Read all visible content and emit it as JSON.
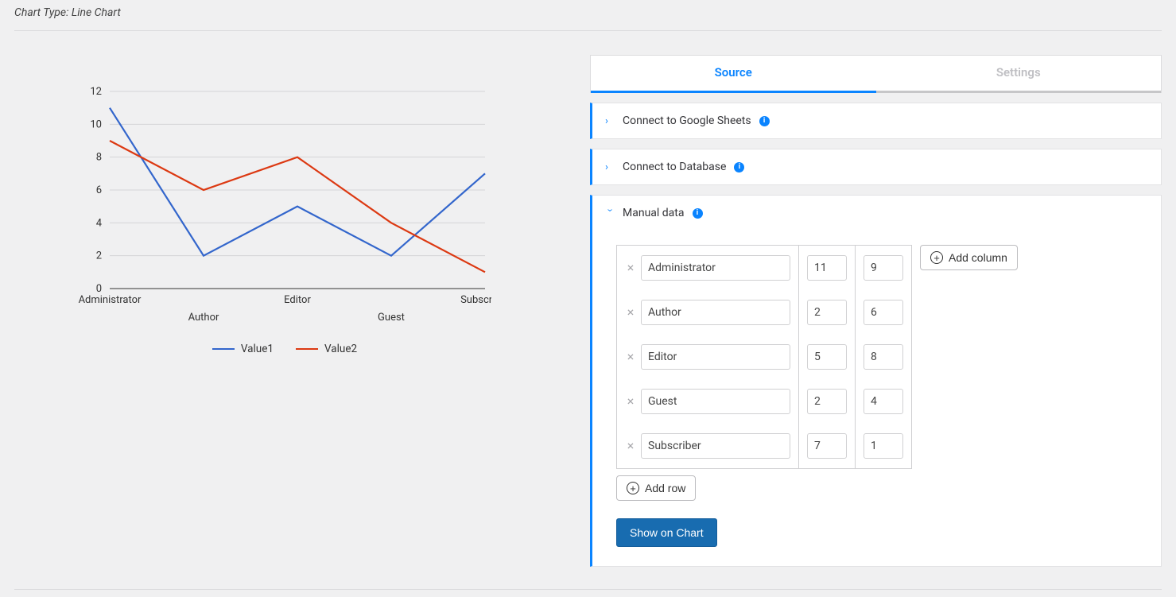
{
  "header": {
    "chart_type_label": "Chart Type: Line Chart"
  },
  "tabs": {
    "source": "Source",
    "settings": "Settings",
    "active": "source"
  },
  "panels": {
    "google_sheets": "Connect to Google Sheets",
    "database": "Connect to Database",
    "manual": "Manual data"
  },
  "buttons": {
    "add_column": "Add column",
    "add_row": "Add row",
    "show_on_chart": "Show on Chart"
  },
  "chart": {
    "type": "line",
    "categories": [
      "Administrator",
      "Author",
      "Editor",
      "Guest",
      "Subscriber"
    ],
    "series": [
      {
        "name": "Value1",
        "color": "#3366cc",
        "values": [
          11,
          2,
          5,
          2,
          7
        ]
      },
      {
        "name": "Value2",
        "color": "#dc3912",
        "values": [
          9,
          6,
          8,
          4,
          1
        ]
      }
    ],
    "y_ticks": [
      0,
      2,
      4,
      6,
      8,
      10,
      12
    ],
    "ylim": [
      0,
      12
    ],
    "grid_color": "#d4d4d6",
    "label_fontsize": 13,
    "background_color": "#f0f0f1"
  },
  "table": {
    "rows": [
      {
        "label": "Administrator",
        "v1": "11",
        "v2": "9"
      },
      {
        "label": "Author",
        "v1": "2",
        "v2": "6"
      },
      {
        "label": "Editor",
        "v1": "5",
        "v2": "8"
      },
      {
        "label": "Guest",
        "v1": "2",
        "v2": "4"
      },
      {
        "label": "Subscriber",
        "v1": "7",
        "v2": "1"
      }
    ]
  }
}
